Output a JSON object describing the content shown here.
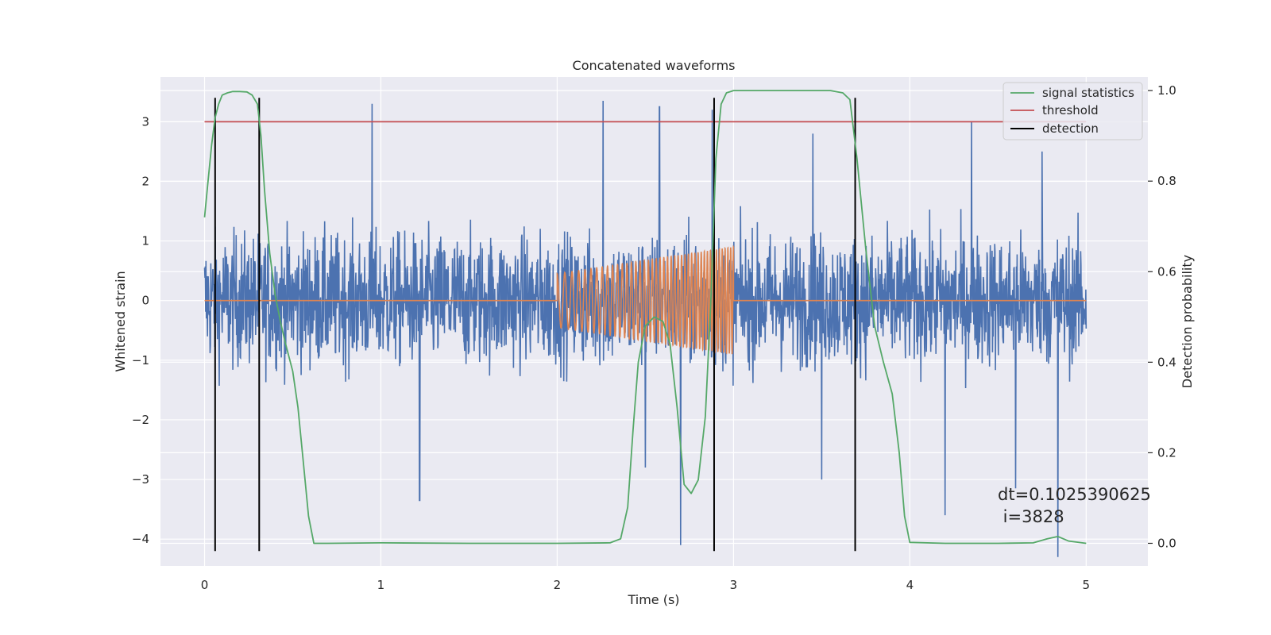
{
  "chart_data": {
    "type": "line",
    "title": "Concatenated waveforms",
    "xlabel": "Time (s)",
    "ylabel": "Whitened strain",
    "ylabel_right": "Detection probability",
    "xlim": [
      -0.25,
      5.35
    ],
    "ylim": [
      -4.45,
      3.75
    ],
    "ylim_right": [
      -0.05,
      1.03
    ],
    "xticks": [
      0,
      1,
      2,
      3,
      4,
      5
    ],
    "yticks": [
      -4,
      -3,
      -2,
      -1,
      0,
      1,
      2,
      3
    ],
    "yticks_right": [
      0.0,
      0.2,
      0.4,
      0.6,
      0.8,
      1.0
    ],
    "xtick_labels": [
      "0",
      "1",
      "2",
      "3",
      "4",
      "5"
    ],
    "ytick_labels": [
      "−4",
      "−3",
      "−2",
      "−1",
      "0",
      "1",
      "2",
      "3"
    ],
    "ytick_right_labels": [
      "0.0",
      "0.2",
      "0.4",
      "0.6",
      "0.8",
      "1.0"
    ],
    "grid": true,
    "legend_position": "top-right",
    "colors": {
      "background": "#eaeaf2",
      "grid": "#ffffff",
      "strain": "#4c72b0",
      "injected": "#dd8452",
      "signal_statistics": "#55a868",
      "threshold": "#c44e52",
      "detection": "#000000"
    },
    "series": [
      {
        "name": "",
        "axis": "left",
        "description_kind": "noise",
        "x_range": [
          0,
          5
        ],
        "envelope_min": -2.0,
        "envelope_max": 2.2,
        "spikes": [
          [
            0.95,
            3.3
          ],
          [
            1.22,
            -3.35
          ],
          [
            2.26,
            3.35
          ],
          [
            2.5,
            -2.8
          ],
          [
            2.58,
            3.25
          ],
          [
            2.7,
            -4.1
          ],
          [
            2.88,
            3.2
          ],
          [
            3.45,
            2.8
          ],
          [
            3.5,
            -3.0
          ],
          [
            4.2,
            -3.6
          ],
          [
            4.35,
            3.0
          ],
          [
            4.6,
            -3.15
          ],
          [
            4.75,
            2.5
          ],
          [
            4.84,
            -4.3
          ]
        ]
      },
      {
        "name": "",
        "axis": "left",
        "description_kind": "chirp",
        "x_range": [
          2,
          3
        ],
        "start_amplitude": 0.45,
        "end_amplitude": 0.9,
        "start_freq": 22,
        "end_freq": 64
      },
      {
        "name": "signal statistics",
        "axis": "right",
        "x": [
          0.0,
          0.02,
          0.04,
          0.06,
          0.08,
          0.1,
          0.13,
          0.16,
          0.2,
          0.24,
          0.27,
          0.3,
          0.32,
          0.34,
          0.37,
          0.4,
          0.43,
          0.46,
          0.5,
          0.53,
          0.56,
          0.59,
          0.62,
          0.7,
          1.0,
          1.5,
          2.0,
          2.3,
          2.36,
          2.4,
          2.43,
          2.46,
          2.5,
          2.55,
          2.6,
          2.64,
          2.68,
          2.72,
          2.76,
          2.8,
          2.84,
          2.87,
          2.9,
          2.93,
          2.96,
          3.0,
          3.3,
          3.55,
          3.62,
          3.66,
          3.7,
          3.75,
          3.8,
          3.85,
          3.9,
          3.94,
          3.97,
          4.0,
          4.2,
          4.5,
          4.7,
          4.78,
          4.84,
          4.9,
          5.0
        ],
        "y": [
          0.72,
          0.8,
          0.88,
          0.94,
          0.97,
          0.99,
          0.995,
          0.998,
          0.998,
          0.997,
          0.99,
          0.97,
          0.9,
          0.78,
          0.64,
          0.55,
          0.49,
          0.44,
          0.38,
          0.3,
          0.18,
          0.06,
          0.0,
          0.0,
          0.001,
          0.0,
          0.0,
          0.001,
          0.01,
          0.08,
          0.25,
          0.4,
          0.48,
          0.5,
          0.49,
          0.44,
          0.3,
          0.13,
          0.11,
          0.14,
          0.28,
          0.52,
          0.85,
          0.97,
          0.995,
          1.0,
          1.0,
          1.0,
          0.995,
          0.98,
          0.85,
          0.65,
          0.48,
          0.4,
          0.33,
          0.2,
          0.06,
          0.002,
          0.0,
          0.0,
          0.001,
          0.01,
          0.015,
          0.005,
          0.0
        ]
      },
      {
        "name": "threshold",
        "axis": "left",
        "x": [
          0,
          5
        ],
        "y": [
          3,
          3
        ]
      },
      {
        "name": "detection",
        "axis": "left",
        "vlines_x": [
          0.06,
          0.31,
          2.89,
          3.69
        ],
        "vline_ymin": -4.2,
        "vline_ymax": 3.4
      }
    ],
    "annotation": {
      "line1": "dt=0.1025390625",
      "line2": " i=3828",
      "x": 4.5,
      "y": -3.4
    }
  }
}
